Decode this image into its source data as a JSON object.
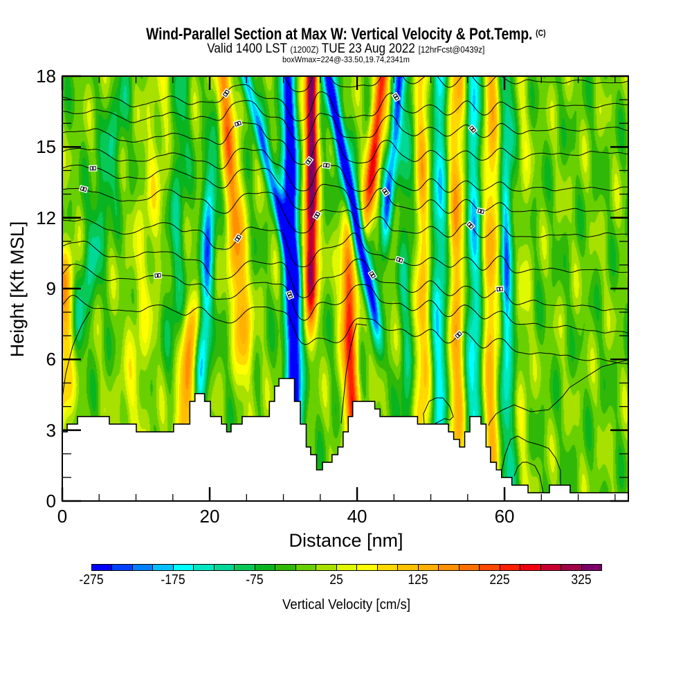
{
  "chart_data": {
    "type": "heatmap",
    "title": "Wind-Parallel Section at Max W: Vertical Velocity & Pot.Temp.",
    "title_suffix": "(C)",
    "subtitle": {
      "valid_local": "Valid 1400 LST",
      "valid_utc": "(1200Z)",
      "date": "TUE 23 Aug 2022",
      "forecast": "[12hrFcst@0439z]"
    },
    "annotation": "boxWmax=224@-33.50,19.74,2341m",
    "xlabel": "Distance [nm]",
    "ylabel": "Height [Kft MSL]",
    "xlim": [
      0,
      76.8
    ],
    "ylim": [
      0,
      18
    ],
    "xticks": [
      "0",
      "20",
      "40",
      "60"
    ],
    "yticks": [
      "0",
      "3",
      "6",
      "9",
      "12",
      "15",
      "18"
    ],
    "x_minor_step": 5,
    "y_minor_step": 1,
    "grid": false,
    "colorbar": {
      "label": "Vertical Velocity [cm/s]",
      "min": -275,
      "step": 25,
      "ticks": [
        "-275",
        "-175",
        "-75",
        "25",
        "125",
        "225",
        "325"
      ],
      "colors": [
        "#0000ff",
        "#0040ff",
        "#0080ff",
        "#00c0ff",
        "#00ffff",
        "#00e8c0",
        "#00d898",
        "#08c858",
        "#08b420",
        "#30b808",
        "#68d000",
        "#a8e000",
        "#e0f800",
        "#ffff00",
        "#ffd800",
        "#ffc000",
        "#ffb000",
        "#ff9000",
        "#ff7000",
        "#ff4800",
        "#ff2000",
        "#f00010",
        "#c80030",
        "#a00048",
        "#780068"
      ]
    },
    "field": {
      "background_w": -15,
      "ridges": [
        {
          "x_ref": 31.5,
          "z_ref": 4.2,
          "dx_dz": -0.066,
          "w_peak": -330,
          "width_nm": 1.0,
          "z_low": 2,
          "z_high": 14,
          "z_fade": 6
        },
        {
          "x_ref": 24.9,
          "z_ref": 18,
          "dx_dz": -0.79,
          "w_peak": -200,
          "width_nm": 0.8,
          "z_low": 12,
          "z_high": 20,
          "z_fade": 2.5
        },
        {
          "x_ref": 33.8,
          "z_ref": 18,
          "dx_dz": 0.0,
          "w_peak": 370,
          "width_nm": 0.85,
          "z_low": 10,
          "z_high": 20,
          "z_fade": 2.5
        },
        {
          "x_ref": 36.0,
          "z_ref": 18,
          "dx_dz": -0.62,
          "w_peak": -310,
          "width_nm": 0.85,
          "z_low": 10,
          "z_high": 17,
          "z_fade": 3
        },
        {
          "x_ref": 39.0,
          "z_ref": 6.6,
          "dx_dz": -0.1,
          "w_peak": 260,
          "width_nm": 1.0,
          "z_low": 4.5,
          "z_high": 9,
          "z_fade": 2.5
        },
        {
          "x_ref": 43.4,
          "z_ref": 18,
          "dx_dz": 0.34,
          "w_peak": 260,
          "width_nm": 0.9,
          "z_low": 14,
          "z_high": 20,
          "z_fade": 3
        },
        {
          "x_ref": 45.8,
          "z_ref": 18,
          "dx_dz": 0.3,
          "w_peak": -210,
          "width_nm": 0.8,
          "z_low": 13,
          "z_high": 20,
          "z_fade": 3
        },
        {
          "x_ref": 22.3,
          "z_ref": 16.7,
          "dx_dz": -0.23,
          "w_peak": 180,
          "width_nm": 1.1,
          "z_low": 8,
          "z_high": 18,
          "z_fade": 3
        },
        {
          "x_ref": 19.6,
          "z_ref": 10,
          "dx_dz": 0.15,
          "w_peak": -190,
          "width_nm": 0.9,
          "z_low": 7,
          "z_high": 12,
          "z_fade": 3
        },
        {
          "x_ref": 16.9,
          "z_ref": 5,
          "dx_dz": 0.3,
          "w_peak": 160,
          "width_nm": 1.2,
          "z_low": 3,
          "z_high": 7,
          "z_fade": 2
        },
        {
          "x_ref": 0.3,
          "z_ref": 7,
          "dx_dz": 0,
          "w_peak": 150,
          "width_nm": 1.3,
          "z_low": 5,
          "z_high": 9,
          "z_fade": 2
        },
        {
          "x_ref": 5,
          "z_ref": 12,
          "dx_dz": 0.6,
          "w_peak": -80,
          "width_nm": 1.5,
          "z_low": 8,
          "z_high": 15,
          "z_fade": 3
        },
        {
          "x_ref": 15.8,
          "z_ref": 14,
          "dx_dz": 0.1,
          "w_peak": -70,
          "width_nm": 1.2,
          "z_low": 9,
          "z_high": 17,
          "z_fade": 3
        },
        {
          "x_ref": 11,
          "z_ref": 9,
          "dx_dz": 0.3,
          "w_peak": 50,
          "width_nm": 2,
          "z_low": 3,
          "z_high": 16,
          "z_fade": 3
        },
        {
          "x_ref": 60.2,
          "z_ref": 10,
          "dx_dz": 0,
          "w_peak": -90,
          "width_nm": 0.6,
          "z_low": 7,
          "z_high": 12,
          "z_fade": 2
        }
      ],
      "wave_train": {
        "crest_x": 53.5,
        "wavelength_nm": 4.7,
        "w_amp": 140,
        "center_x": 54,
        "extent_nm": 8,
        "tilt": 0
      }
    },
    "terrain_steps_nm_kft": [
      [
        0,
        2.93
      ],
      [
        0.66,
        3.26
      ],
      [
        2.07,
        3.58
      ],
      [
        6.38,
        3.26
      ],
      [
        10.05,
        2.93
      ],
      [
        15.1,
        3.26
      ],
      [
        17.3,
        4.22
      ],
      [
        18.0,
        4.55
      ],
      [
        19.3,
        4.22
      ],
      [
        20.1,
        3.58
      ],
      [
        21.6,
        3.26
      ],
      [
        22.3,
        2.93
      ],
      [
        22.9,
        3.26
      ],
      [
        24.4,
        3.58
      ],
      [
        28.1,
        4.22
      ],
      [
        28.8,
        4.87
      ],
      [
        29.4,
        5.19
      ],
      [
        31.5,
        4.22
      ],
      [
        32.3,
        3.26
      ],
      [
        33.1,
        2.29
      ],
      [
        33.7,
        1.96
      ],
      [
        34.5,
        1.32
      ],
      [
        35.3,
        1.64
      ],
      [
        36.6,
        1.96
      ],
      [
        37.4,
        2.29
      ],
      [
        38.1,
        2.93
      ],
      [
        38.8,
        3.58
      ],
      [
        39.4,
        4.22
      ],
      [
        42.4,
        3.9
      ],
      [
        43.1,
        3.58
      ],
      [
        48.2,
        3.26
      ],
      [
        52.4,
        2.93
      ],
      [
        53.1,
        2.61
      ],
      [
        53.9,
        2.29
      ],
      [
        54.6,
        2.93
      ],
      [
        55.3,
        3.58
      ],
      [
        56.8,
        3.26
      ],
      [
        57.5,
        2.29
      ],
      [
        58.1,
        1.64
      ],
      [
        58.9,
        1.32
      ],
      [
        59.6,
        1.0
      ],
      [
        61.0,
        0.67
      ],
      [
        63.2,
        0.35
      ],
      [
        66.1,
        0.67
      ],
      [
        68.9,
        0.35
      ]
    ],
    "isentropes_kft": {
      "left": [
        18.4,
        17.1,
        16.5,
        15.6,
        14.8,
        14.1,
        13.2,
        11.9,
        10.8,
        9.6,
        8.3
      ],
      "right": [
        17.8,
        16.8,
        15.7,
        14.7,
        13.3,
        12.4,
        11.3,
        9.7,
        8.1,
        7.1,
        5.8
      ]
    }
  }
}
